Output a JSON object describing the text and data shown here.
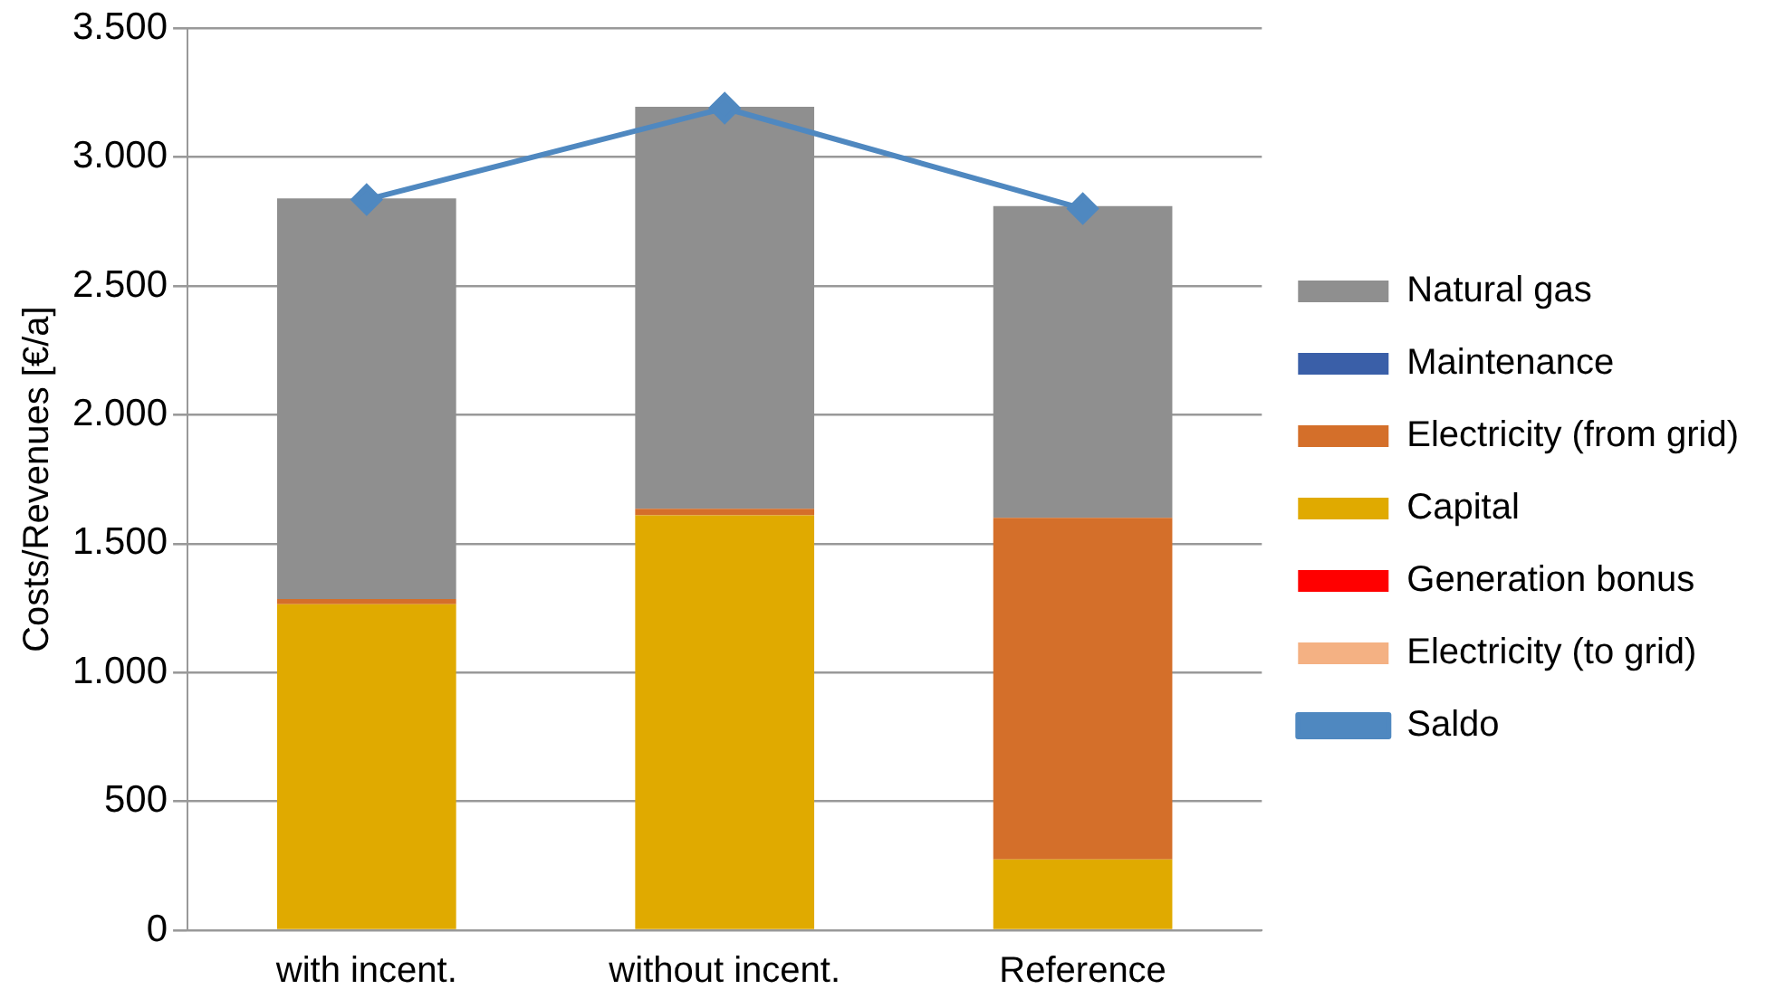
{
  "chart_data": {
    "type": "bar",
    "stacked": true,
    "ylabel": "Costs/Revenues [€/a]",
    "categories": [
      "with incent.",
      "without incent.",
      "Reference"
    ],
    "series": [
      {
        "name": "Electricity (to grid)",
        "color": "#f4b183",
        "values": [
          0,
          0,
          0
        ]
      },
      {
        "name": "Generation bonus",
        "color": "#ff0000",
        "values": [
          0,
          0,
          0
        ]
      },
      {
        "name": "Capital",
        "color": "#e0aa00",
        "values": [
          1265,
          1610,
          275
        ]
      },
      {
        "name": "Electricity (from grid)",
        "color": "#d46f2a",
        "values": [
          20,
          25,
          1325
        ]
      },
      {
        "name": "Maintenance",
        "color": "#3a5fa8",
        "values": [
          0,
          0,
          0
        ]
      },
      {
        "name": "Natural gas",
        "color": "#8f8f8f",
        "values": [
          1555,
          1560,
          1210
        ]
      },
      {
        "name": "Saldo",
        "type": "line",
        "color": "#4f88c0",
        "marker": "diamond",
        "values": [
          2835,
          3190,
          2800
        ]
      }
    ],
    "ylim": [
      0,
      3500
    ],
    "yticks": [
      0,
      500,
      {
        "value": 1000,
        "label": "1.000"
      },
      {
        "value": 1500,
        "label": "1.500"
      },
      {
        "value": 2000,
        "label": "2.000"
      },
      {
        "value": 2500,
        "label": "2.500"
      },
      {
        "value": 3000,
        "label": "3.000"
      },
      {
        "value": 3500,
        "label": "3.500"
      }
    ],
    "grid": "y",
    "legend": "right"
  }
}
